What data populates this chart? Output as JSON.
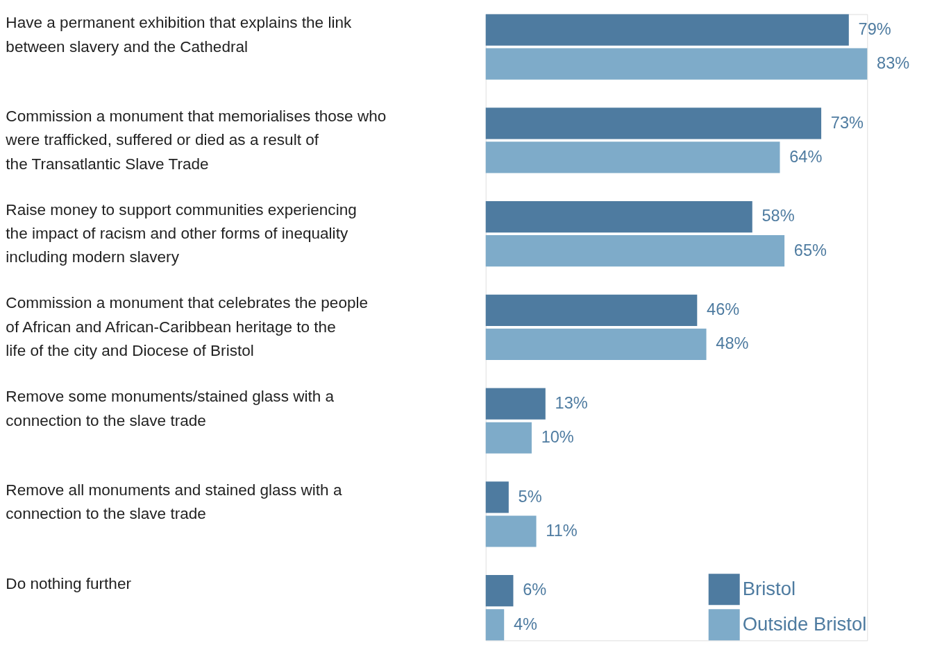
{
  "chart_data": {
    "type": "bar",
    "orientation": "horizontal",
    "categories": [
      "Have a permanent exhibition that explains the link between slavery and the Cathedral",
      "Commission a monument that memorialises those who were trafficked, suffered or died as a result of the Transatlantic Slave Trade",
      "Raise money to support communities experiencing the impact of racism and other forms of inequality including modern slavery",
      "Commission a monument that celebrates the people of African and African-Caribbean heritage to the life of the city and Diocese of Bristol",
      "Remove some monuments/stained glass with a connection to the slave trade",
      "Remove all monuments and stained glass with a connection to the slave trade",
      "Do nothing further"
    ],
    "series": [
      {
        "name": "Bristol",
        "color": "#4e7ba0",
        "values": [
          79,
          73,
          58,
          46,
          13,
          5,
          6
        ],
        "value_labels": [
          "79%",
          "73%",
          "58%",
          "46%",
          "13%",
          "5%",
          "6%"
        ]
      },
      {
        "name": "Outside Bristol",
        "color": "#7eabc9",
        "values": [
          83,
          64,
          65,
          48,
          10,
          11,
          4
        ],
        "value_labels": [
          "83%",
          "64%",
          "65%",
          "48%",
          "10%",
          "11%",
          "4%"
        ]
      }
    ],
    "legend": "bottom right"
  }
}
